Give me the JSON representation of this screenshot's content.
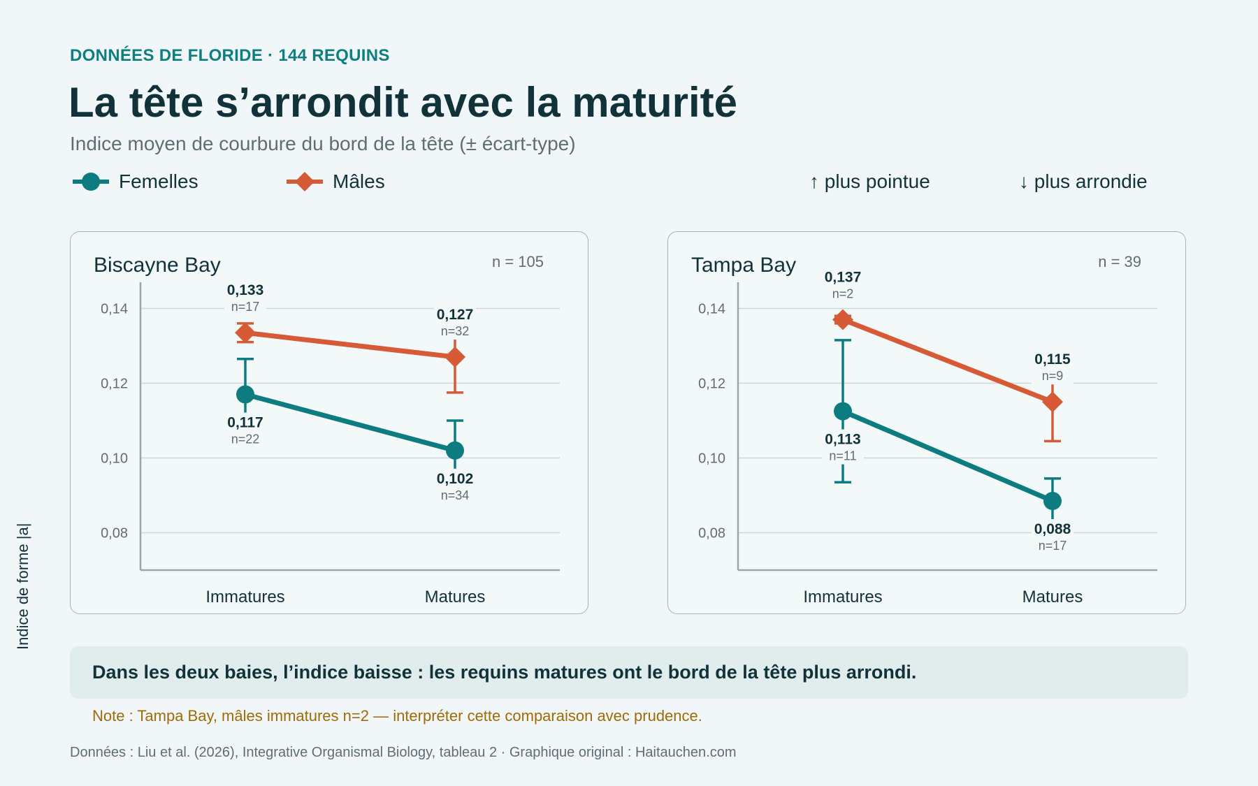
{
  "header": {
    "kicker": "DONNÉES DE FLORIDE · 144 REQUINS",
    "title": "La tête s’arrondit avec la maturité",
    "subtitle": "Indice moyen de courbure du bord de la tête (± écart-type)"
  },
  "legend": {
    "female": "Femelles",
    "male": "Mâles",
    "up_note": "↑ plus pointue",
    "down_note": "↓ plus arrondie"
  },
  "y_axis_label": "Indice de forme |a|",
  "colors": {
    "female": "#0d7c80",
    "male": "#d65a36",
    "grid": "#cdd8db",
    "axis": "#97a8ad"
  },
  "chart_data": [
    {
      "type": "line",
      "title": "Biscayne Bay",
      "n_label": "n = 105",
      "categories": [
        "Immatures",
        "Matures"
      ],
      "yticks": [
        "0,14",
        "0,12",
        "0,10",
        "0,08"
      ],
      "ylim": [
        0.07,
        0.147
      ],
      "series": [
        {
          "name": "Femelles",
          "key": "female",
          "marker": "circle",
          "values": [
            0.117,
            0.102
          ],
          "sd": [
            0.0095,
            0.008
          ],
          "value_labels": [
            "0,117",
            "0,102"
          ],
          "n_labels": [
            "n=22",
            "n=34"
          ],
          "label_pos": [
            "below",
            "below"
          ]
        },
        {
          "name": "Mâles",
          "key": "male",
          "marker": "diamond",
          "values": [
            0.1335,
            0.127
          ],
          "sd": [
            0.0025,
            0.0095
          ],
          "value_labels": [
            "0,133",
            "0,127"
          ],
          "n_labels": [
            "n=17",
            "n=32"
          ],
          "label_pos": [
            "above",
            "above"
          ]
        }
      ]
    },
    {
      "type": "line",
      "title": "Tampa Bay",
      "n_label": "n = 39",
      "categories": [
        "Immatures",
        "Matures"
      ],
      "yticks": [
        "0,14",
        "0,12",
        "0,10",
        "0,08"
      ],
      "ylim": [
        0.07,
        0.147
      ],
      "series": [
        {
          "name": "Femelles",
          "key": "female",
          "marker": "circle",
          "values": [
            0.1125,
            0.0885
          ],
          "sd": [
            0.019,
            0.006
          ],
          "value_labels": [
            "0,113",
            "0,088"
          ],
          "n_labels": [
            "n=11",
            "n=17"
          ],
          "label_pos": [
            "below",
            "below"
          ]
        },
        {
          "name": "Mâles",
          "key": "male",
          "marker": "diamond",
          "values": [
            0.137,
            0.115
          ],
          "sd": [
            0.001,
            0.0105
          ],
          "value_labels": [
            "0,137",
            "0,115"
          ],
          "n_labels": [
            "n=2",
            "n=9"
          ],
          "label_pos": [
            "above",
            "above"
          ]
        }
      ]
    }
  ],
  "conclusion": "Dans les deux baies, l’indice baisse : les requins matures ont le bord de la tête plus arrondi.",
  "note": "Note : Tampa Bay, mâles immatures n=2 — interpréter cette comparaison avec prudence.",
  "source": "Données : Liu et al. (2026), Integrative Organismal Biology, tableau 2 · Graphique original : Haitauchen.com"
}
